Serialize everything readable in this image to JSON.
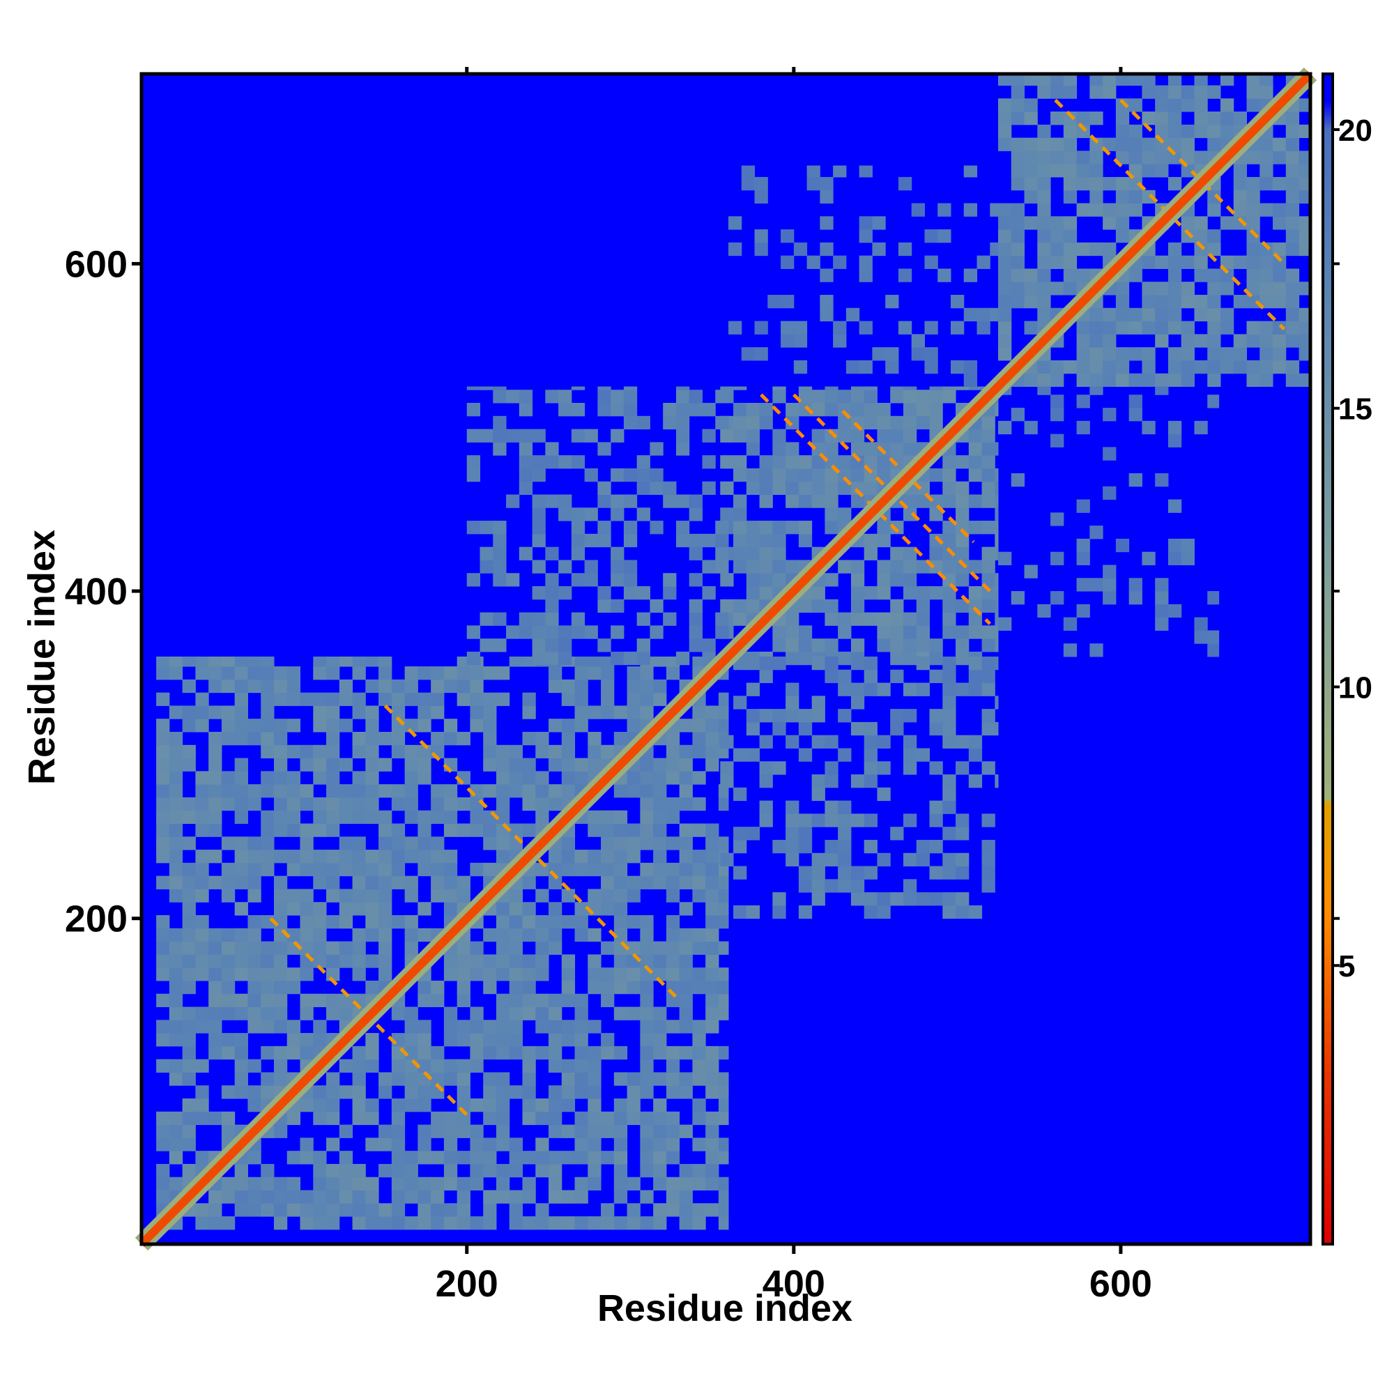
{
  "chart_data": {
    "type": "heatmap",
    "title": "",
    "xlabel": "Residue index",
    "ylabel": "Residue index",
    "xlim": [
      1,
      716
    ],
    "ylim": [
      1,
      716
    ],
    "x_ticks": [
      200,
      400,
      600
    ],
    "y_ticks": [
      200,
      400,
      600
    ],
    "x_tick_labels": [
      "200",
      "400",
      "600"
    ],
    "y_tick_labels": [
      "200",
      "400",
      "600"
    ],
    "colorbar": {
      "range": [
        0,
        21
      ],
      "ticks": [
        5,
        10,
        15,
        20
      ],
      "tick_labels": [
        "5",
        "10",
        "15",
        "20"
      ],
      "stops": [
        {
          "value": 0,
          "color": "#e00000"
        },
        {
          "value": 3,
          "color": "#e83400"
        },
        {
          "value": 6,
          "color": "#ff8c00"
        },
        {
          "value": 7.9,
          "color": "#e0a000"
        },
        {
          "value": 8,
          "color": "#9fb07a"
        },
        {
          "value": 12,
          "color": "#7f9f9a"
        },
        {
          "value": 17,
          "color": "#5a84b4"
        },
        {
          "value": 20,
          "color": "#4a6fc0"
        },
        {
          "value": 20.5,
          "color": "#0000ff"
        },
        {
          "value": 21,
          "color": "#0000ff"
        }
      ]
    },
    "background_value": 21,
    "diagonal_value": 3.8,
    "regions": [
      {
        "x": [
          10,
          360
        ],
        "y": [
          10,
          360
        ],
        "value": 16.5,
        "density": 0.72
      },
      {
        "x": [
          355,
          525
        ],
        "y": [
          355,
          525
        ],
        "value": 16.5,
        "density": 0.72
      },
      {
        "x": [
          525,
          716
        ],
        "y": [
          525,
          716
        ],
        "value": 16.5,
        "density": 0.72
      },
      {
        "x": [
          200,
          360
        ],
        "y": [
          355,
          525
        ],
        "value": 17.5,
        "density": 0.4
      },
      {
        "x": [
          355,
          525
        ],
        "y": [
          200,
          360
        ],
        "value": 17.5,
        "density": 0.4
      },
      {
        "x": [
          360,
          525
        ],
        "y": [
          525,
          660
        ],
        "value": 18.5,
        "density": 0.18
      },
      {
        "x": [
          525,
          660
        ],
        "y": [
          360,
          525
        ],
        "value": 18.5,
        "density": 0.18
      }
    ],
    "contact_lines": [
      {
        "x1": 80,
        "y1": 200,
        "x2": 200,
        "y2": 80,
        "value": 7
      },
      {
        "x1": 150,
        "y1": 330,
        "x2": 330,
        "y2": 150,
        "value": 7
      },
      {
        "x1": 380,
        "y1": 520,
        "x2": 520,
        "y2": 380,
        "value": 6
      },
      {
        "x1": 400,
        "y1": 520,
        "x2": 520,
        "y2": 400,
        "value": 6
      },
      {
        "x1": 430,
        "y1": 510,
        "x2": 510,
        "y2": 430,
        "value": 6
      },
      {
        "x1": 560,
        "y1": 700,
        "x2": 700,
        "y2": 560,
        "value": 7
      },
      {
        "x1": 600,
        "y1": 700,
        "x2": 700,
        "y2": 600,
        "value": 7
      }
    ]
  }
}
